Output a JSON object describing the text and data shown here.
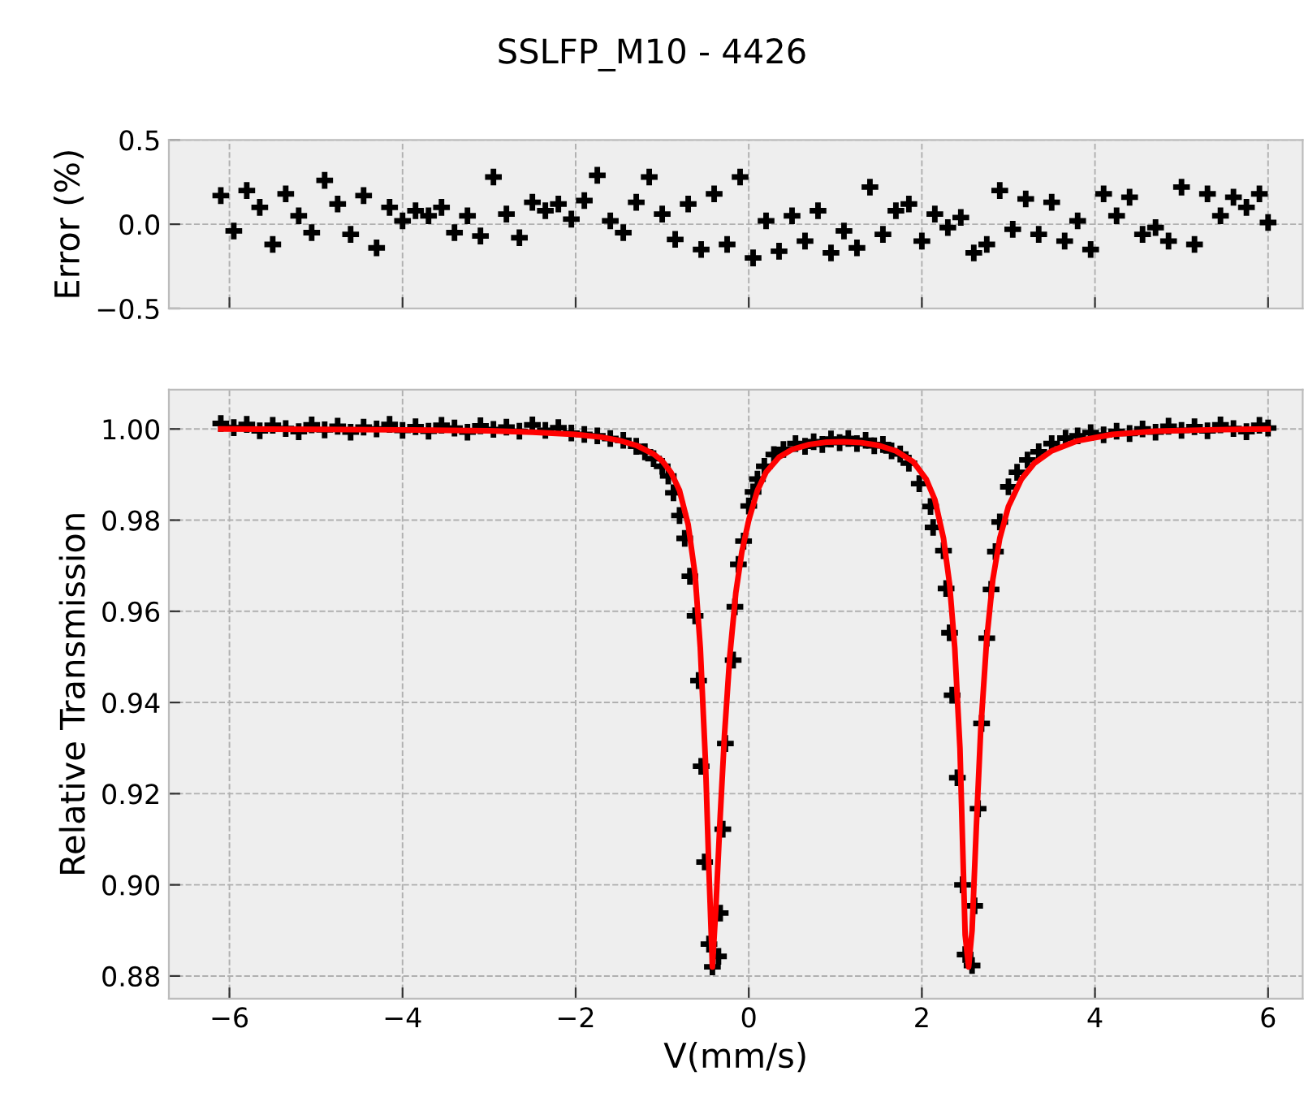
{
  "chart_data": [
    {
      "type": "scatter",
      "title": "SSLFP_M10 - 4426",
      "ylabel": "Error (%)",
      "xlim": [
        -6.7,
        6.4
      ],
      "ylim": [
        -0.5,
        0.5
      ],
      "xticks": [
        {
          "value": -6,
          "label": null
        },
        {
          "value": -4,
          "label": null
        },
        {
          "value": -2,
          "label": null
        },
        {
          "value": 0,
          "label": null
        },
        {
          "value": 2,
          "label": null
        },
        {
          "value": 4,
          "label": null
        },
        {
          "value": 6,
          "label": null
        }
      ],
      "yticks": [
        {
          "value": -0.5,
          "label": "−0.5"
        },
        {
          "value": 0,
          "label": "0.0"
        },
        {
          "value": 0.5,
          "label": "0.5"
        }
      ],
      "tick_labels": "y",
      "grid": true,
      "marker": "cross",
      "series": [
        {
          "color": "#000000",
          "x": [
            -6.1,
            -5.95,
            -5.8,
            -5.65,
            -5.5,
            -5.35,
            -5.2,
            -5.05,
            -4.9,
            -4.75,
            -4.6,
            -4.45,
            -4.3,
            -4.15,
            -4.0,
            -3.85,
            -3.7,
            -3.55,
            -3.4,
            -3.25,
            -3.1,
            -2.95,
            -2.8,
            -2.65,
            -2.5,
            -2.35,
            -2.2,
            -2.05,
            -1.9,
            -1.75,
            -1.6,
            -1.45,
            -1.3,
            -1.15,
            -1.0,
            -0.85,
            -0.7,
            -0.55,
            -0.4,
            -0.25,
            -0.1,
            0.05,
            0.2,
            0.35,
            0.5,
            0.65,
            0.8,
            0.95,
            1.1,
            1.25,
            1.4,
            1.55,
            1.7,
            1.85,
            2.0,
            2.15,
            2.3,
            2.45,
            2.6,
            2.75,
            2.9,
            3.05,
            3.2,
            3.35,
            3.5,
            3.65,
            3.8,
            3.95,
            4.1,
            4.25,
            4.4,
            4.55,
            4.7,
            4.85,
            5.0,
            5.15,
            5.3,
            5.45,
            5.6,
            5.75,
            5.9,
            6.0
          ],
          "values": [
            0.17,
            -0.04,
            0.2,
            0.1,
            -0.12,
            0.18,
            0.05,
            -0.05,
            0.26,
            0.12,
            -0.06,
            0.17,
            -0.14,
            0.1,
            0.02,
            0.08,
            0.05,
            0.1,
            -0.05,
            0.05,
            -0.07,
            0.28,
            0.06,
            -0.08,
            0.13,
            0.08,
            0.12,
            0.03,
            0.14,
            0.29,
            0.02,
            -0.05,
            0.13,
            0.28,
            0.06,
            -0.09,
            0.12,
            -0.15,
            0.18,
            -0.12,
            0.28,
            -0.2,
            0.02,
            -0.16,
            0.05,
            -0.1,
            0.08,
            -0.17,
            -0.04,
            -0.14,
            0.22,
            -0.06,
            0.08,
            0.12,
            -0.1,
            0.06,
            -0.02,
            0.04,
            -0.17,
            -0.12,
            0.2,
            -0.03,
            0.15,
            -0.06,
            0.13,
            -0.1,
            0.02,
            -0.15,
            0.18,
            0.05,
            0.16,
            -0.06,
            -0.02,
            -0.1,
            0.22,
            -0.12,
            0.18,
            0.05,
            0.16,
            0.1,
            0.18,
            0.01
          ]
        }
      ]
    },
    {
      "type": "scatter",
      "xlabel": "V(mm/s)",
      "ylabel": "Relative Transmission",
      "xlim": [
        -6.7,
        6.4
      ],
      "ylim": [
        0.875,
        1.0086
      ],
      "xticks": [
        {
          "value": -6,
          "label": "−6"
        },
        {
          "value": -4,
          "label": "−4"
        },
        {
          "value": -2,
          "label": "−2"
        },
        0,
        2,
        4,
        6
      ],
      "yticks": [
        {
          "value": 0.88,
          "label": "0.88"
        },
        {
          "value": 0.9,
          "label": "0.90"
        },
        {
          "value": 0.92,
          "label": "0.92"
        },
        {
          "value": 0.94,
          "label": "0.94"
        },
        {
          "value": 0.96,
          "label": "0.96"
        },
        {
          "value": 0.98,
          "label": "0.98"
        },
        {
          "value": 1.0,
          "label": "1.00"
        }
      ],
      "grid": true,
      "marker": "cross",
      "series": [
        {
          "color": "#000000",
          "x": [
            -6.1,
            -5.95,
            -5.8,
            -5.65,
            -5.5,
            -5.35,
            -5.2,
            -5.05,
            -4.9,
            -4.75,
            -4.6,
            -4.45,
            -4.3,
            -4.15,
            -4.0,
            -3.85,
            -3.7,
            -3.55,
            -3.4,
            -3.25,
            -3.1,
            -2.95,
            -2.8,
            -2.65,
            -2.5,
            -2.35,
            -2.2,
            -2.05,
            -1.9,
            -1.75,
            -1.6,
            -1.45,
            -1.3,
            -1.2,
            -1.1,
            -1.0,
            -0.93,
            -0.87,
            -0.8,
            -0.74,
            -0.68,
            -0.62,
            -0.58,
            -0.55,
            -0.51,
            -0.46,
            -0.42,
            -0.35,
            -0.33,
            -0.3,
            -0.27,
            -0.18,
            -0.16,
            -0.12,
            -0.06,
            0.0,
            0.05,
            0.1,
            0.18,
            0.29,
            0.4,
            0.54,
            0.65,
            0.75,
            0.85,
            0.95,
            1.05,
            1.15,
            1.25,
            1.35,
            1.45,
            1.55,
            1.65,
            1.75,
            1.85,
            1.97,
            2.1,
            2.13,
            2.25,
            2.28,
            2.32,
            2.35,
            2.41,
            2.47,
            2.5,
            2.58,
            2.61,
            2.65,
            2.69,
            2.75,
            2.8,
            2.85,
            2.9,
            3.0,
            3.1,
            3.22,
            3.35,
            3.5,
            3.66,
            3.8,
            3.95,
            4.1,
            4.25,
            4.4,
            4.55,
            4.7,
            4.85,
            5.0,
            5.15,
            5.3,
            5.45,
            5.6,
            5.75,
            5.9,
            6.0
          ],
          "values": [
            1.0012,
            1.0003,
            1.001,
            0.9996,
            1.0008,
            1.0001,
            0.9994,
            1.0009,
            0.9998,
            1.0006,
            0.9993,
            1.0004,
            1.0,
            1.001,
            0.9997,
            1.0005,
            0.9995,
            1.0008,
            1.0002,
            0.9993,
            1.0007,
            0.9999,
            1.0004,
            0.9995,
            1.0009,
            0.9997,
            1.0003,
            0.9991,
            0.9988,
            0.9985,
            0.9979,
            0.9975,
            0.9962,
            0.995,
            0.9935,
            0.9918,
            0.9897,
            0.986,
            0.981,
            0.976,
            0.9677,
            0.959,
            0.9448,
            0.926,
            0.905,
            0.887,
            0.882,
            0.8843,
            0.8938,
            0.9122,
            0.931,
            0.9493,
            0.961,
            0.9703,
            0.9754,
            0.9831,
            0.9862,
            0.989,
            0.9918,
            0.9944,
            0.9955,
            0.9968,
            0.9962,
            0.9972,
            0.9966,
            0.9978,
            0.997,
            0.9979,
            0.9968,
            0.9975,
            0.9963,
            0.9966,
            0.9952,
            0.9945,
            0.9925,
            0.988,
            0.983,
            0.9784,
            0.9733,
            0.965,
            0.9553,
            0.9416,
            0.9235,
            0.9,
            0.8847,
            0.8823,
            0.8954,
            0.9167,
            0.9354,
            0.9541,
            0.9648,
            0.9731,
            0.9796,
            0.9873,
            0.9905,
            0.9932,
            0.995,
            0.9968,
            0.998,
            0.9985,
            0.9992,
            0.9987,
            0.9995,
            0.999,
            1.0,
            0.9993,
            1.0006,
            0.9997,
            1.0005,
            0.9996,
            1.0009,
            1.0001,
            0.9994,
            1.0008,
            1.0002
          ]
        },
        {
          "type": "line",
          "color": "#ff0000",
          "marker": "none",
          "line_style": "solid",
          "x": [
            -6.1,
            -5,
            -4,
            -3,
            -2.5,
            -2,
            -1.7,
            -1.5,
            -1.3,
            -1.1,
            -1.0,
            -0.9,
            -0.8,
            -0.7,
            -0.62,
            -0.56,
            -0.5,
            -0.46,
            -0.42,
            -0.38,
            -0.33,
            -0.28,
            -0.22,
            -0.15,
            -0.08,
            0,
            0.1,
            0.2,
            0.35,
            0.5,
            0.7,
            0.9,
            1.1,
            1.3,
            1.5,
            1.7,
            1.9,
            2.05,
            2.15,
            2.25,
            2.32,
            2.38,
            2.44,
            2.5,
            2.54,
            2.58,
            2.63,
            2.68,
            2.75,
            2.82,
            2.9,
            3.0,
            3.15,
            3.3,
            3.5,
            3.8,
            4.2,
            4.7,
            5.3,
            6.0
          ],
          "values": [
            1.0,
            0.9999,
            0.9998,
            0.9996,
            0.9993,
            0.9988,
            0.9982,
            0.9975,
            0.9964,
            0.9945,
            0.993,
            0.9905,
            0.9865,
            0.979,
            0.968,
            0.952,
            0.927,
            0.903,
            0.882,
            0.895,
            0.915,
            0.933,
            0.95,
            0.964,
            0.973,
            0.98,
            0.9865,
            0.9905,
            0.9938,
            0.9955,
            0.9966,
            0.9971,
            0.9972,
            0.997,
            0.9964,
            0.9952,
            0.9928,
            0.989,
            0.9845,
            0.976,
            0.966,
            0.952,
            0.93,
            0.889,
            0.882,
            0.89,
            0.913,
            0.934,
            0.954,
            0.967,
            0.976,
            0.983,
            0.989,
            0.9925,
            0.9952,
            0.9974,
            0.9988,
            0.9995,
            0.9998,
            1.0
          ]
        }
      ]
    }
  ]
}
